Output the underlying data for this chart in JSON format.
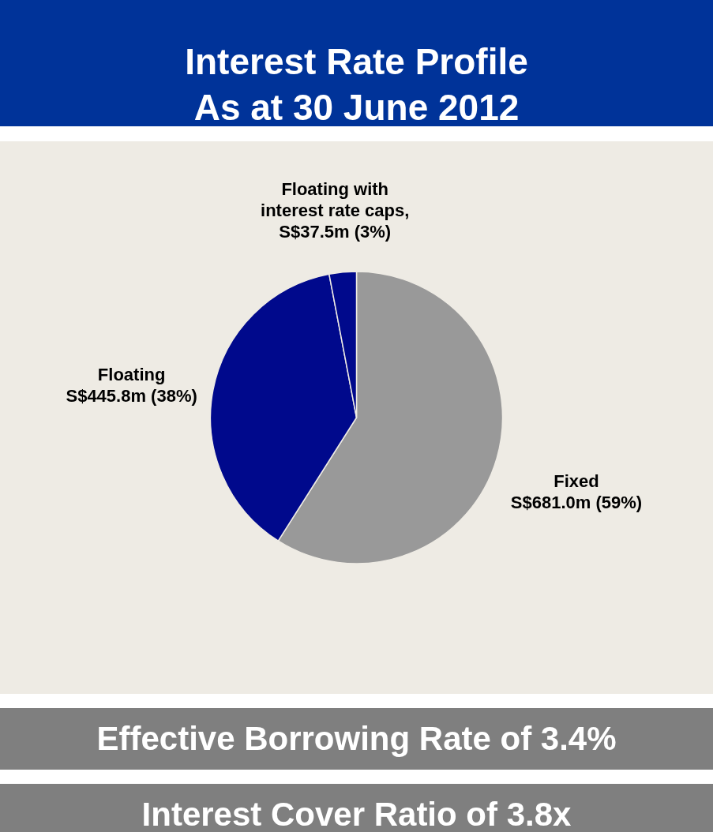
{
  "chart_data": {
    "type": "pie",
    "title": "Interest Rate Profile\nAs at 30 June 2012",
    "categories": [
      "Fixed",
      "Floating",
      "Floating with interest rate caps"
    ],
    "values": [
      59,
      38,
      3
    ],
    "colors": [
      "#999999",
      "#00098c",
      "#00098c"
    ],
    "value_labels": [
      "S$681.0m (59%)",
      "S$445.8m (38%)",
      ", S$37.5m (3%)"
    ],
    "annotations": [
      "Effective Borrowing Rate of 3.4%",
      "Interest Cover Ratio of 3.8x"
    ],
    "legend": false
  }
}
